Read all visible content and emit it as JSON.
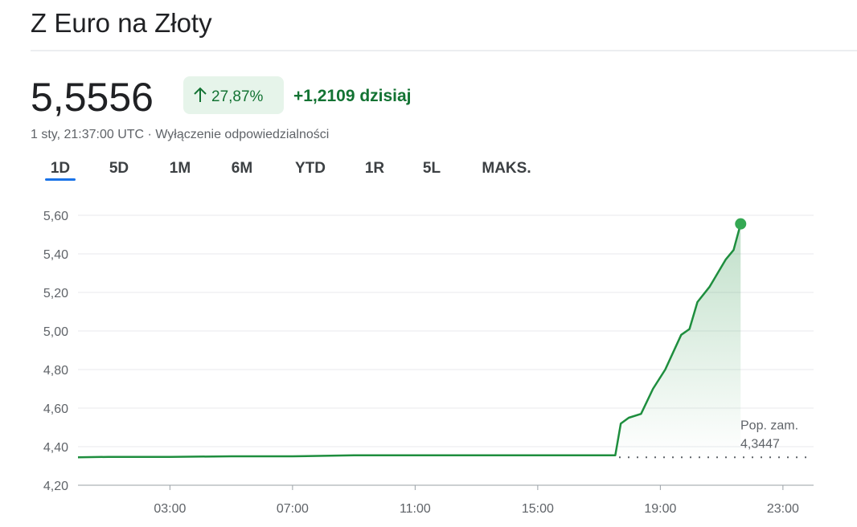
{
  "header": {
    "title": "Z Euro na Złoty",
    "price": "5,5556",
    "change_pct": "27,87%",
    "change_abs": "+1,2109 dzisiaj",
    "subtitle": "1 sty, 21:37:00 UTC · Wyłączenie odpowiedzialności"
  },
  "tabs": {
    "items": [
      "1D",
      "5D",
      "1M",
      "6M",
      "YTD",
      "1R",
      "5L",
      "MAKS."
    ],
    "active": 0
  },
  "chart_data": {
    "type": "line",
    "color": "#1e8e3e",
    "area": true,
    "grid": true,
    "x": [
      0,
      1,
      3,
      5,
      7,
      9,
      11,
      13,
      15,
      17.53,
      17.71,
      17.97,
      18.37,
      18.76,
      19.16,
      19.68,
      19.95,
      20.21,
      20.61,
      21.13,
      21.39,
      21.62
    ],
    "values": [
      4.345,
      4.347,
      4.347,
      4.35,
      4.35,
      4.355,
      4.355,
      4.355,
      4.355,
      4.355,
      4.52,
      4.55,
      4.57,
      4.7,
      4.8,
      4.98,
      5.01,
      5.15,
      5.23,
      5.37,
      5.42,
      5.5556
    ],
    "xlim": [
      0,
      24
    ],
    "ylim": [
      4.2,
      5.6
    ],
    "xticks": [
      {
        "value": 3,
        "label": "03:00"
      },
      {
        "value": 7,
        "label": "07:00"
      },
      {
        "value": 11,
        "label": "11:00"
      },
      {
        "value": 15,
        "label": "15:00"
      },
      {
        "value": 19,
        "label": "19:00"
      },
      {
        "value": 23,
        "label": "23:00"
      }
    ],
    "yticks": [
      {
        "value": 4.2,
        "label": "4,20"
      },
      {
        "value": 4.4,
        "label": "4,40"
      },
      {
        "value": 4.6,
        "label": "4,60"
      },
      {
        "value": 4.8,
        "label": "4,80"
      },
      {
        "value": 5.0,
        "label": "5,00"
      },
      {
        "value": 5.2,
        "label": "5,20"
      },
      {
        "value": 5.4,
        "label": "5,40"
      },
      {
        "value": 5.6,
        "label": "5,60"
      }
    ],
    "previous_close": {
      "label": "Pop. zam.",
      "value": 4.3447,
      "value_label": "4,3447"
    }
  }
}
